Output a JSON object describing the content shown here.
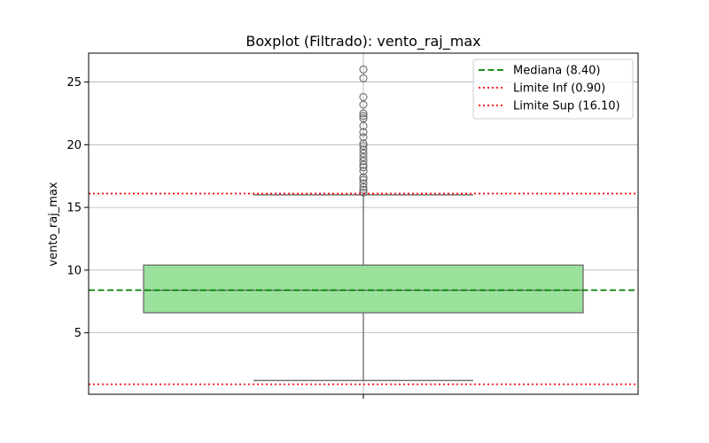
{
  "chart_data": {
    "type": "boxplot",
    "title": "Boxplot (Filtrado): vento_raj_max",
    "xlabel": "",
    "ylabel": "vento_raj_max",
    "ylim": [
      0.1,
      27.3
    ],
    "yticks": [
      5,
      10,
      15,
      20,
      25
    ],
    "grid": true,
    "legend_position": "top-right",
    "box": {
      "whisker_low": 1.2,
      "q1": 6.6,
      "median": 8.4,
      "q3": 10.4,
      "whisker_high": 16.0,
      "fill_color": "#9ae29c",
      "edge_color": "#6a6a6a"
    },
    "outliers": [
      16.2,
      16.4,
      16.6,
      16.9,
      17.2,
      17.4,
      17.9,
      18.2,
      18.4,
      18.7,
      19.0,
      19.3,
      19.6,
      19.9,
      20.1,
      20.6,
      21.0,
      21.5,
      22.1,
      22.3,
      22.5,
      23.2,
      23.8,
      25.3,
      26.0
    ],
    "reference_lines": [
      {
        "name": "Mediana (8.40)",
        "value": 8.4,
        "color": "#008000",
        "style": "dashed"
      },
      {
        "name": "Limite Inf (0.90)",
        "value": 0.9,
        "color": "#ff0000",
        "style": "dotted"
      },
      {
        "name": "Limite Sup (16.10)",
        "value": 16.1,
        "color": "#ff0000",
        "style": "dotted"
      }
    ]
  }
}
